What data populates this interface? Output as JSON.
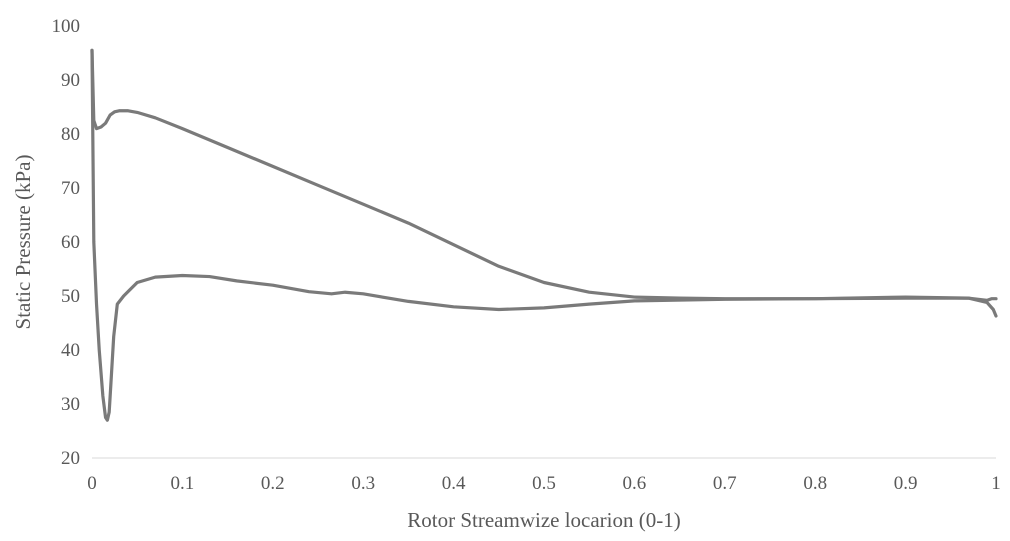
{
  "chart_data": {
    "type": "line",
    "title": "",
    "xlabel": "Rotor Streamwize locarion (0-1)",
    "ylabel": "Static Pressure (kPa)",
    "xlim": [
      0,
      1
    ],
    "ylim": [
      20,
      100
    ],
    "x_ticks": [
      "0",
      "0.1",
      "0.2",
      "0.3",
      "0.4",
      "0.5",
      "0.6",
      "0.7",
      "0.8",
      "0.9",
      "1"
    ],
    "y_ticks": [
      "20",
      "30",
      "40",
      "50",
      "60",
      "70",
      "80",
      "90",
      "100"
    ],
    "grid": false,
    "legend": "none",
    "line_color": "#7a7a7a",
    "series": [
      {
        "x": [
          0.0,
          0.002,
          0.005,
          0.01,
          0.015,
          0.02,
          0.025,
          0.03,
          0.04,
          0.05,
          0.07,
          0.1,
          0.15,
          0.2,
          0.25,
          0.3,
          0.35,
          0.4,
          0.45,
          0.5,
          0.55,
          0.6,
          0.65,
          0.7,
          0.8,
          0.9,
          0.97,
          0.99,
          0.995,
          1.0
        ],
        "y": [
          95.5,
          82.5,
          81.0,
          81.3,
          82.0,
          83.5,
          84.1,
          84.3,
          84.3,
          84.0,
          83.0,
          81.0,
          77.5,
          74.0,
          70.5,
          67.0,
          63.5,
          59.5,
          55.5,
          52.5,
          50.7,
          49.8,
          49.6,
          49.5,
          49.5,
          49.6,
          49.6,
          49.2,
          49.5,
          49.5
        ]
      },
      {
        "x": [
          0.0,
          0.002,
          0.005,
          0.008,
          0.012,
          0.015,
          0.017,
          0.019,
          0.021,
          0.024,
          0.028,
          0.035,
          0.05,
          0.07,
          0.1,
          0.13,
          0.16,
          0.2,
          0.24,
          0.265,
          0.28,
          0.3,
          0.35,
          0.4,
          0.45,
          0.5,
          0.55,
          0.6,
          0.7,
          0.8,
          0.9,
          0.97,
          0.99,
          0.997,
          1.0
        ],
        "y": [
          95.5,
          60.0,
          48.5,
          40.0,
          31.5,
          27.5,
          27.0,
          28.5,
          34.0,
          42.5,
          48.5,
          50.0,
          52.5,
          53.5,
          53.8,
          53.6,
          52.8,
          52.0,
          50.8,
          50.4,
          50.7,
          50.4,
          49.0,
          48.0,
          47.5,
          47.8,
          48.5,
          49.1,
          49.4,
          49.5,
          49.8,
          49.6,
          48.8,
          47.5,
          46.3
        ]
      }
    ]
  }
}
